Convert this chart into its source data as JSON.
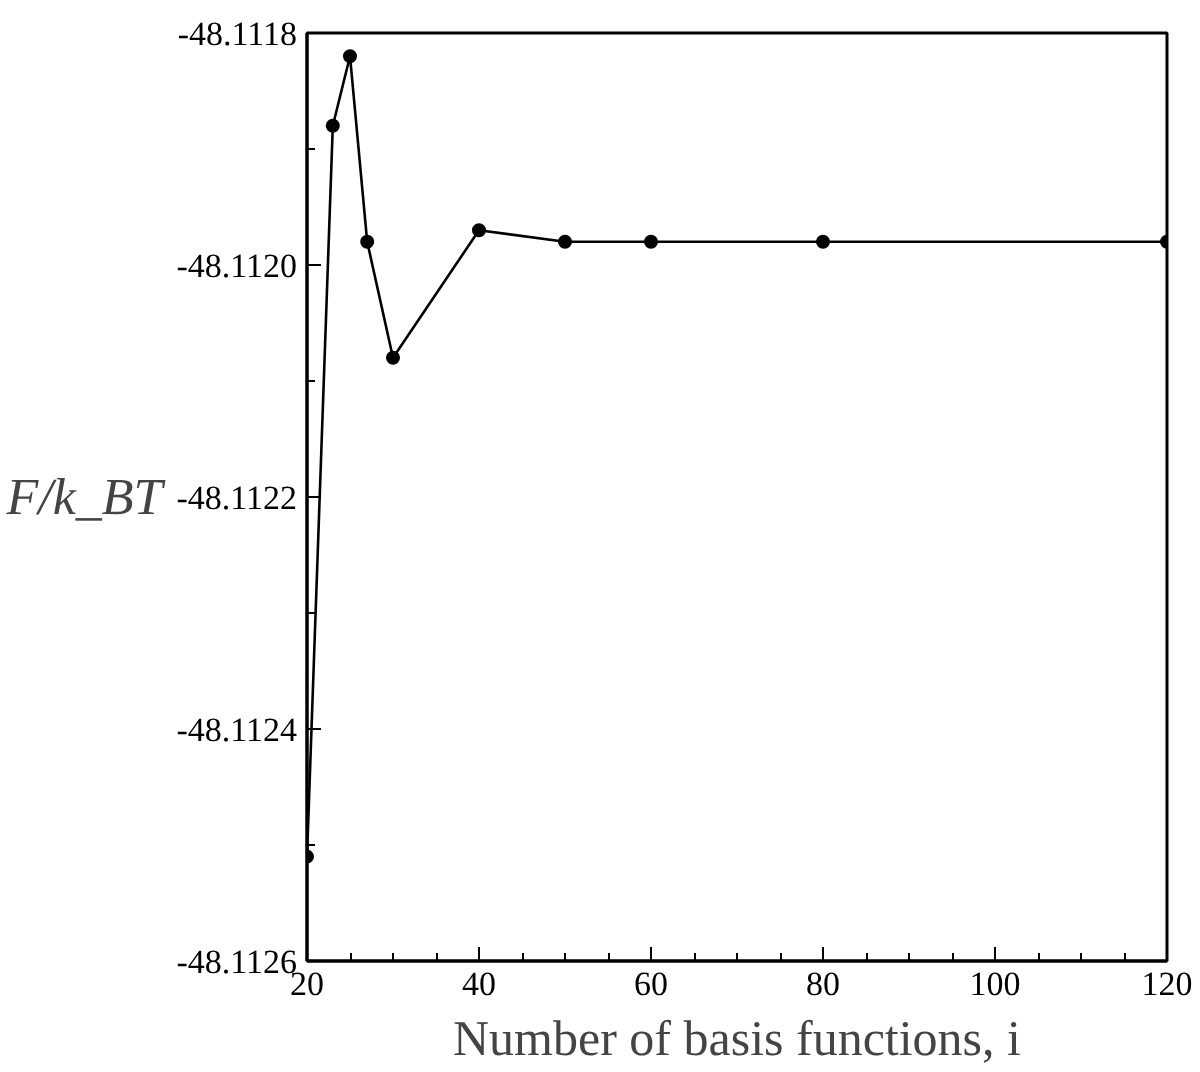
{
  "chart_data": {
    "type": "line",
    "xlabel": "Number of basis functions, i",
    "ylabel": "F/k_BT",
    "x": [
      20,
      23,
      25,
      27,
      30,
      40,
      50,
      60,
      80,
      120
    ],
    "series": [
      {
        "color": "#000000",
        "values": [
          -48.11251,
          -48.11188,
          -48.11182,
          -48.11198,
          -48.11208,
          -48.11197,
          -48.11198,
          -48.11198,
          -48.11198,
          -48.11198
        ]
      }
    ],
    "marker": "circle",
    "line_style": "solid",
    "grid": false,
    "xlim": [
      20,
      120
    ],
    "xticks": [
      20,
      40,
      60,
      80,
      100,
      120
    ],
    "ylim": [
      -48.1126,
      -48.1118
    ],
    "yticks": [
      -48.1126,
      -48.1124,
      -48.1122,
      {
        "value": -48.112,
        "label": "-48.1120"
      },
      -48.1118
    ]
  }
}
